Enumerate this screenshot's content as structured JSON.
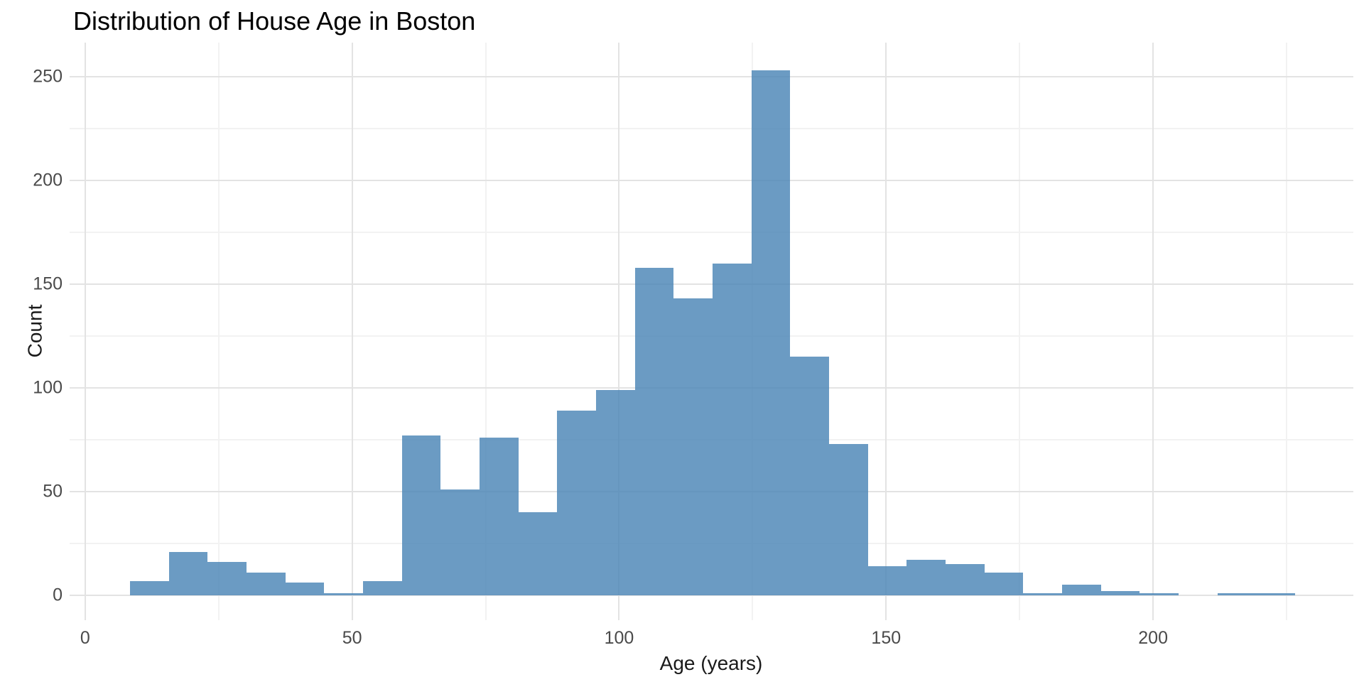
{
  "title": "Distribution of House Age in Boston",
  "chart_data": {
    "type": "bar",
    "subtype": "histogram",
    "title": "Distribution of House Age in Boston",
    "xlabel": "Age (years)",
    "ylabel": "Count",
    "bin_start": 8.4,
    "bin_width": 7.273,
    "counts": [
      7,
      21,
      16,
      11,
      6,
      1,
      7,
      77,
      51,
      76,
      40,
      89,
      99,
      158,
      143,
      160,
      253,
      115,
      73,
      14,
      17,
      15,
      11,
      1,
      5,
      2,
      1,
      0,
      1,
      1
    ],
    "x_ticks_major": [
      0,
      50,
      100,
      150,
      200
    ],
    "x_tick_labels": [
      "0",
      "50",
      "100",
      "150",
      "200"
    ],
    "x_ticks_minor": [
      25,
      75,
      125,
      175,
      225
    ],
    "y_ticks_major": [
      0,
      50,
      100,
      150,
      200,
      250
    ],
    "y_tick_labels": [
      "0",
      "50",
      "100",
      "150",
      "200",
      "250"
    ],
    "y_ticks_minor": [
      25,
      75,
      125,
      175,
      225
    ],
    "x_range": [
      -2.9,
      237.5
    ],
    "y_range": [
      -12.0,
      266.4
    ],
    "grid": "major-and-minor, no axis lines, no tick marks",
    "legend": "none",
    "colors": {
      "bar_fill_base": "#4682B4",
      "bar_fill_opacity": "0.8",
      "bar_fill_rendered": "#6B9BC3",
      "grid_major": "#e3e3e3",
      "grid_minor": "#f2f2f2",
      "background": "#ffffff",
      "tick_text": "#4a4a4a",
      "title_text": "#000000",
      "axis_title_text": "#1a1a1a"
    }
  }
}
